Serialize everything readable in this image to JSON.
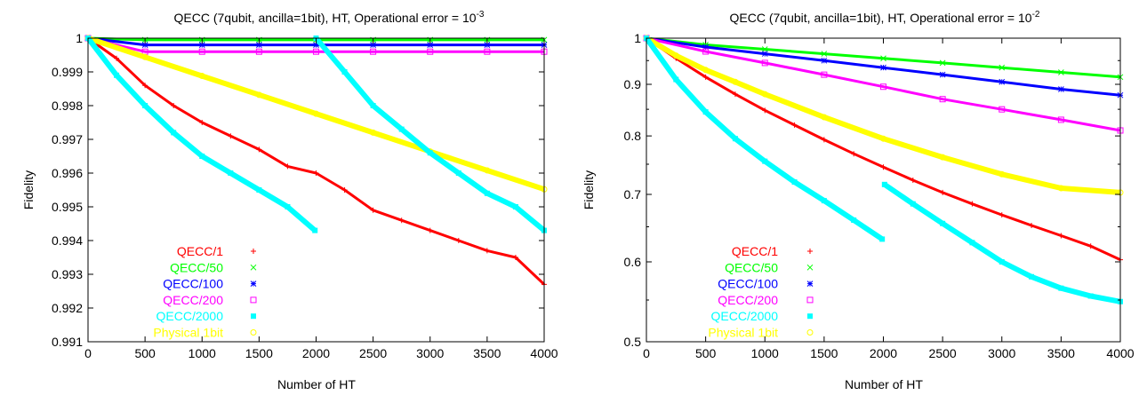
{
  "chart_data": [
    {
      "type": "scatter",
      "title_prefix": "QECC (7qubit, ancilla=1bit), HT, Operational error = 10",
      "title_exp": "-3",
      "xlabel": "Number of HT",
      "ylabel": "Fidelity",
      "xlim": [
        0,
        4000
      ],
      "ylim": [
        0.991,
        1
      ],
      "yscale": "linear",
      "xticks": [
        "0",
        "500",
        "1000",
        "1500",
        "2000",
        "2500",
        "3000",
        "3500",
        "4000"
      ],
      "yticks": [
        "0.991",
        "0.992",
        "0.993",
        "0.994",
        "0.995",
        "0.996",
        "0.997",
        "0.998",
        "0.999",
        "1"
      ],
      "legend_position": "bottom-left",
      "series": [
        {
          "name": "QECC/1",
          "color": "#ff0000",
          "marker": "plus",
          "x": [
            0,
            250,
            500,
            750,
            1000,
            1250,
            1500,
            1750,
            2000,
            2250,
            2500,
            2750,
            3000,
            3250,
            3500,
            3750,
            4000
          ],
          "y": [
            1.0,
            0.9994,
            0.9986,
            0.998,
            0.9975,
            0.9971,
            0.9967,
            0.9962,
            0.996,
            0.9955,
            0.9949,
            0.9946,
            0.9943,
            0.994,
            0.9937,
            0.9935,
            0.9927
          ]
        },
        {
          "name": "QECC/50",
          "color": "#00ff00",
          "marker": "cross",
          "x": [
            0,
            500,
            1000,
            1500,
            2000,
            2500,
            3000,
            3500,
            4000
          ],
          "y": [
            1.0,
            0.99995,
            0.99995,
            0.99995,
            0.99995,
            0.99995,
            0.99995,
            0.99995,
            0.99995
          ]
        },
        {
          "name": "QECC/100",
          "color": "#0000ff",
          "marker": "star",
          "x": [
            0,
            500,
            1000,
            1500,
            2000,
            2500,
            3000,
            3500,
            4000
          ],
          "y": [
            1.0,
            0.9998,
            0.9998,
            0.9998,
            0.9998,
            0.9998,
            0.9998,
            0.9998,
            0.9998
          ]
        },
        {
          "name": "QECC/200",
          "color": "#ff00ff",
          "marker": "square",
          "x": [
            0,
            500,
            1000,
            1500,
            2000,
            2500,
            3000,
            3500,
            4000
          ],
          "y": [
            1.0,
            0.9996,
            0.9996,
            0.9996,
            0.9996,
            0.9996,
            0.9996,
            0.9996,
            0.9996
          ]
        },
        {
          "name": "QECC/2000",
          "color": "#00ffff",
          "marker": "filled-square",
          "x": [
            0,
            250,
            500,
            750,
            1000,
            1250,
            1500,
            1750,
            1990,
            2000,
            2250,
            2500,
            2750,
            3000,
            3250,
            3500,
            3750,
            4000
          ],
          "y": [
            1.0,
            0.9989,
            0.998,
            0.9972,
            0.9965,
            0.996,
            0.9955,
            0.995,
            0.9943,
            1.0,
            0.999,
            0.998,
            0.9973,
            0.9966,
            0.996,
            0.9954,
            0.995,
            0.9943
          ]
        },
        {
          "name": "Physical 1bit",
          "color": "#ffff00",
          "marker": "circle",
          "x": [
            0,
            500,
            1000,
            1500,
            2000,
            2500,
            3000,
            3500,
            4000
          ],
          "y": [
            1.0,
            0.99944,
            0.99888,
            0.99832,
            0.99776,
            0.9972,
            0.99664,
            0.99608,
            0.99552
          ]
        }
      ]
    },
    {
      "type": "scatter",
      "title_prefix": "QECC (7qubit, ancilla=1bit), HT, Operational error = 10",
      "title_exp": "-2",
      "xlabel": "Number of HT",
      "ylabel": "Fidelity",
      "xlim": [
        0,
        4000
      ],
      "ylim": [
        0.5,
        1
      ],
      "yscale": "log",
      "xticks": [
        "0",
        "500",
        "1000",
        "1500",
        "2000",
        "2500",
        "3000",
        "3500",
        "4000"
      ],
      "yticks": [
        "0.5",
        "0.6",
        "0.7",
        "0.8",
        "0.9",
        "1"
      ],
      "legend_position": "bottom-left",
      "series": [
        {
          "name": "QECC/1",
          "color": "#ff0000",
          "marker": "plus",
          "x": [
            0,
            250,
            500,
            750,
            1000,
            1250,
            1500,
            1750,
            2000,
            2250,
            2500,
            2750,
            3000,
            3250,
            3500,
            3750,
            4000
          ],
          "y": [
            1.0,
            0.955,
            0.915,
            0.88,
            0.848,
            0.82,
            0.793,
            0.768,
            0.745,
            0.723,
            0.703,
            0.685,
            0.668,
            0.652,
            0.637,
            0.622,
            0.603
          ]
        },
        {
          "name": "QECC/50",
          "color": "#00ff00",
          "marker": "cross",
          "x": [
            0,
            500,
            1000,
            1500,
            2000,
            2500,
            3000,
            3500,
            4000
          ],
          "y": [
            1.0,
            0.985,
            0.975,
            0.965,
            0.955,
            0.945,
            0.935,
            0.925,
            0.915
          ]
        },
        {
          "name": "QECC/100",
          "color": "#0000ff",
          "marker": "star",
          "x": [
            0,
            500,
            1000,
            1500,
            2000,
            2500,
            3000,
            3500,
            4000
          ],
          "y": [
            1.0,
            0.98,
            0.965,
            0.95,
            0.935,
            0.92,
            0.905,
            0.89,
            0.878
          ]
        },
        {
          "name": "QECC/200",
          "color": "#ff00ff",
          "marker": "square",
          "x": [
            0,
            500,
            1000,
            1500,
            2000,
            2500,
            3000,
            3500,
            4000
          ],
          "y": [
            1.0,
            0.97,
            0.945,
            0.92,
            0.895,
            0.87,
            0.85,
            0.83,
            0.81
          ]
        },
        {
          "name": "QECC/2000",
          "color": "#00ffff",
          "marker": "filled-square",
          "x": [
            0,
            250,
            500,
            750,
            1000,
            1250,
            1500,
            1750,
            1990,
            2010,
            2250,
            2500,
            2750,
            3000,
            3250,
            3500,
            3750,
            4000
          ],
          "y": [
            1.0,
            0.91,
            0.845,
            0.795,
            0.755,
            0.72,
            0.69,
            0.66,
            0.632,
            0.716,
            0.685,
            0.655,
            0.627,
            0.6,
            0.58,
            0.565,
            0.555,
            0.548
          ]
        },
        {
          "name": "Physical 1bit",
          "color": "#ffff00",
          "marker": "circle",
          "x": [
            0,
            250,
            500,
            750,
            1000,
            1500,
            2000,
            2500,
            3000,
            3500,
            4000
          ],
          "y": [
            1.0,
            0.961,
            0.93,
            0.905,
            0.88,
            0.835,
            0.795,
            0.762,
            0.733,
            0.71,
            0.703
          ]
        }
      ]
    }
  ]
}
